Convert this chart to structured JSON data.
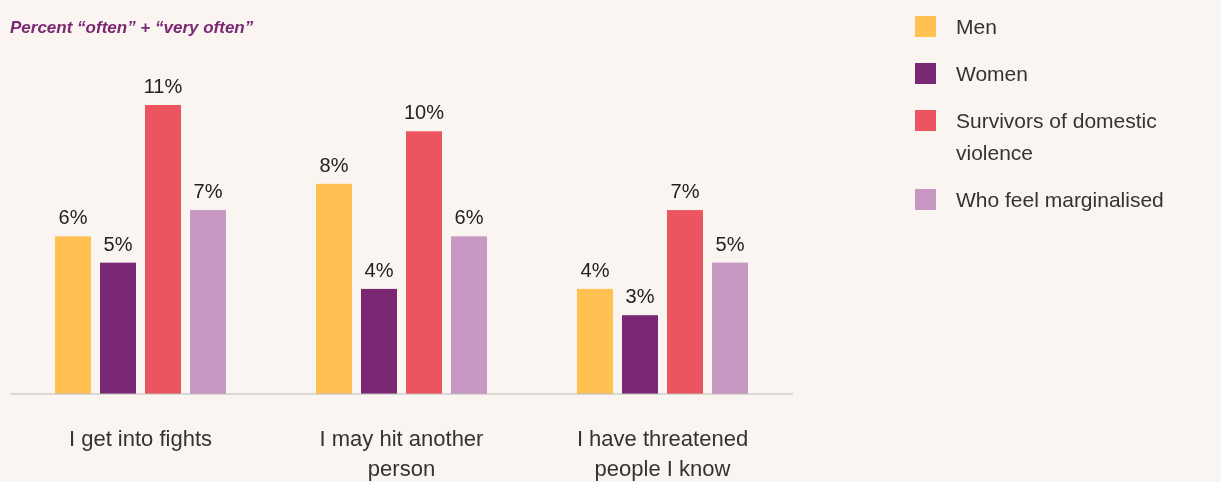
{
  "chart_data": {
    "type": "bar",
    "title": "Percent  “often” + “very often”",
    "categories": [
      "I get into fights",
      "I may hit another person",
      "I have threatened people I know"
    ],
    "series": [
      {
        "name": "Men",
        "color": "#ffc152",
        "values": [
          6,
          8,
          4
        ],
        "value_labels": [
          "6%",
          "8%",
          "4%"
        ]
      },
      {
        "name": "Women",
        "color": "#7a2874",
        "values": [
          5,
          4,
          3
        ],
        "value_labels": [
          "5%",
          "4%",
          "3%"
        ]
      },
      {
        "name": "Survivors of domestic violence",
        "color": "#ec555f",
        "values": [
          11,
          10,
          7
        ],
        "value_labels": [
          "11%",
          "10%",
          "7%"
        ]
      },
      {
        "name": "Who feel marginalised",
        "color": "#c897c4",
        "values": [
          7,
          6,
          5
        ],
        "value_labels": [
          "7%",
          "6%",
          "5%"
        ]
      }
    ],
    "legend": "top right"
  }
}
